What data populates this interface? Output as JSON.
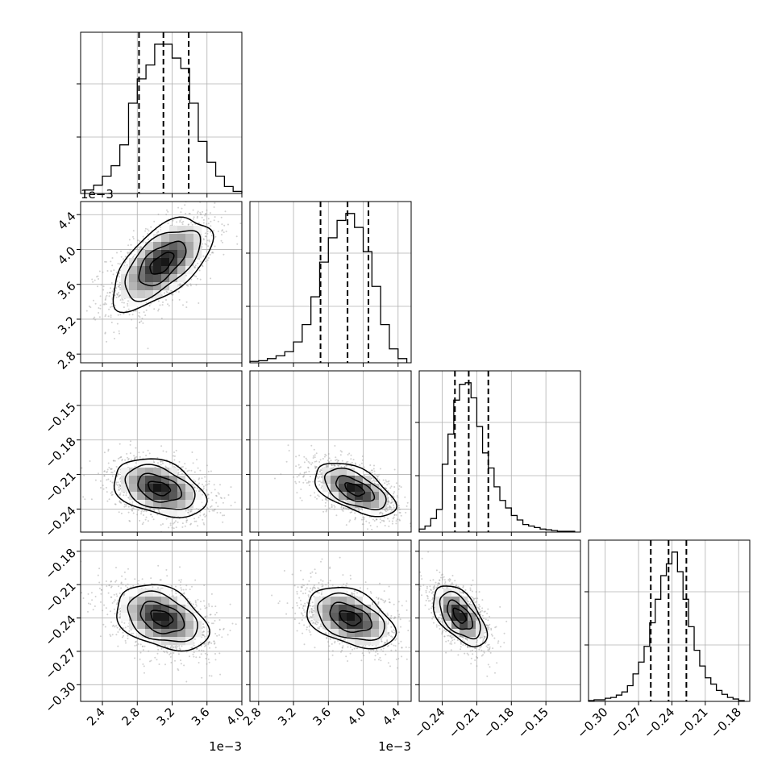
{
  "chart_data": {
    "type": "corner",
    "grid": true,
    "parameters": [
      {
        "ticks": [
          2.4,
          2.8,
          3.2,
          3.6,
          4.0
        ],
        "tick_labels": [
          "2.4",
          "2.8",
          "3.2",
          "3.6",
          "4.0"
        ],
        "range": [
          2.15,
          4.0
        ],
        "offset_label": "1e−3"
      },
      {
        "ticks": [
          2.8,
          3.2,
          3.6,
          4.0,
          4.4
        ],
        "tick_labels": [
          "2.8",
          "3.2",
          "3.6",
          "4.0",
          "4.4"
        ],
        "range": [
          2.7,
          4.55
        ],
        "offset_label": "1e−3"
      },
      {
        "ticks": [
          -0.24,
          -0.21,
          -0.18,
          -0.15
        ],
        "tick_labels": [
          "−0.24",
          "−0.21",
          "−0.18",
          "−0.15"
        ],
        "range": [
          -0.26,
          -0.12
        ],
        "offset_label": ""
      },
      {
        "ticks": [
          -0.3,
          -0.27,
          -0.24,
          -0.21,
          -0.18
        ],
        "tick_labels": [
          "−0.30",
          "−0.27",
          "−0.24",
          "−0.21",
          "−0.18"
        ],
        "range": [
          -0.315,
          -0.17
        ],
        "offset_label": ""
      }
    ],
    "quantiles": [
      [
        2.82,
        3.1,
        3.39
      ],
      [
        3.51,
        3.82,
        4.06
      ],
      [
        -0.229,
        -0.217,
        -0.2
      ],
      [
        -0.259,
        -0.243,
        -0.227
      ]
    ],
    "marginals": [
      {
        "bins": [
          2.2,
          2.3,
          2.4,
          2.5,
          2.6,
          2.7,
          2.8,
          2.9,
          3.0,
          3.1,
          3.2,
          3.3,
          3.4,
          3.5,
          3.6,
          3.7,
          3.8,
          3.9,
          4.0
        ],
        "counts": [
          5,
          12,
          25,
          40,
          70,
          130,
          165,
          185,
          215,
          215,
          195,
          180,
          130,
          75,
          45,
          25,
          10,
          3
        ]
      },
      {
        "bins": [
          2.7,
          2.8,
          2.9,
          3.0,
          3.1,
          3.2,
          3.3,
          3.4,
          3.5,
          3.6,
          3.7,
          3.8,
          3.9,
          4.0,
          4.1,
          4.2,
          4.3,
          4.4,
          4.5
        ],
        "counts": [
          2,
          3,
          6,
          10,
          16,
          30,
          55,
          95,
          145,
          180,
          205,
          215,
          195,
          160,
          110,
          55,
          20,
          6
        ]
      },
      {
        "bins": [
          -0.26,
          -0.255,
          -0.25,
          -0.245,
          -0.24,
          -0.235,
          -0.23,
          -0.225,
          -0.22,
          -0.215,
          -0.21,
          -0.205,
          -0.2,
          -0.195,
          -0.19,
          -0.185,
          -0.18,
          -0.175,
          -0.17,
          -0.165,
          -0.16,
          -0.155,
          -0.15,
          -0.145,
          -0.14,
          -0.135,
          -0.13,
          -0.125
        ],
        "counts": [
          4,
          8,
          18,
          30,
          90,
          130,
          175,
          196,
          198,
          178,
          140,
          105,
          85,
          60,
          42,
          32,
          22,
          16,
          10,
          8,
          6,
          4,
          3,
          2,
          1,
          1,
          1
        ]
      },
      {
        "bins": [
          -0.315,
          -0.31,
          -0.305,
          -0.3,
          -0.295,
          -0.29,
          -0.285,
          -0.28,
          -0.275,
          -0.27,
          -0.265,
          -0.26,
          -0.255,
          -0.25,
          -0.245,
          -0.24,
          -0.235,
          -0.23,
          -0.225,
          -0.22,
          -0.215,
          -0.21,
          -0.205,
          -0.2,
          -0.195,
          -0.19,
          -0.185,
          -0.18,
          -0.175
        ],
        "counts": [
          1,
          2,
          2,
          4,
          5,
          8,
          12,
          20,
          35,
          50,
          70,
          100,
          130,
          160,
          175,
          190,
          165,
          130,
          95,
          65,
          45,
          30,
          22,
          14,
          9,
          5,
          3,
          1
        ]
      }
    ],
    "pairs": [
      {
        "x": 0,
        "y": 1,
        "center": [
          3.08,
          3.84
        ],
        "sigma": [
          0.27,
          0.25
        ],
        "rho": 0.6
      },
      {
        "x": 0,
        "y": 2,
        "center": [
          3.05,
          -0.222
        ],
        "sigma": [
          0.25,
          0.012
        ],
        "rho": -0.35
      },
      {
        "x": 1,
        "y": 2,
        "center": [
          3.9,
          -0.223
        ],
        "sigma": [
          0.22,
          0.011
        ],
        "rho": -0.55
      },
      {
        "x": 0,
        "y": 3,
        "center": [
          3.08,
          -0.24
        ],
        "sigma": [
          0.25,
          0.014
        ],
        "rho": -0.35
      },
      {
        "x": 1,
        "y": 3,
        "center": [
          3.85,
          -0.24
        ],
        "sigma": [
          0.24,
          0.013
        ],
        "rho": -0.4
      },
      {
        "x": 2,
        "y": 3,
        "center": [
          -0.225,
          -0.238
        ],
        "sigma": [
          0.011,
          0.013
        ],
        "rho": -0.55
      }
    ]
  }
}
